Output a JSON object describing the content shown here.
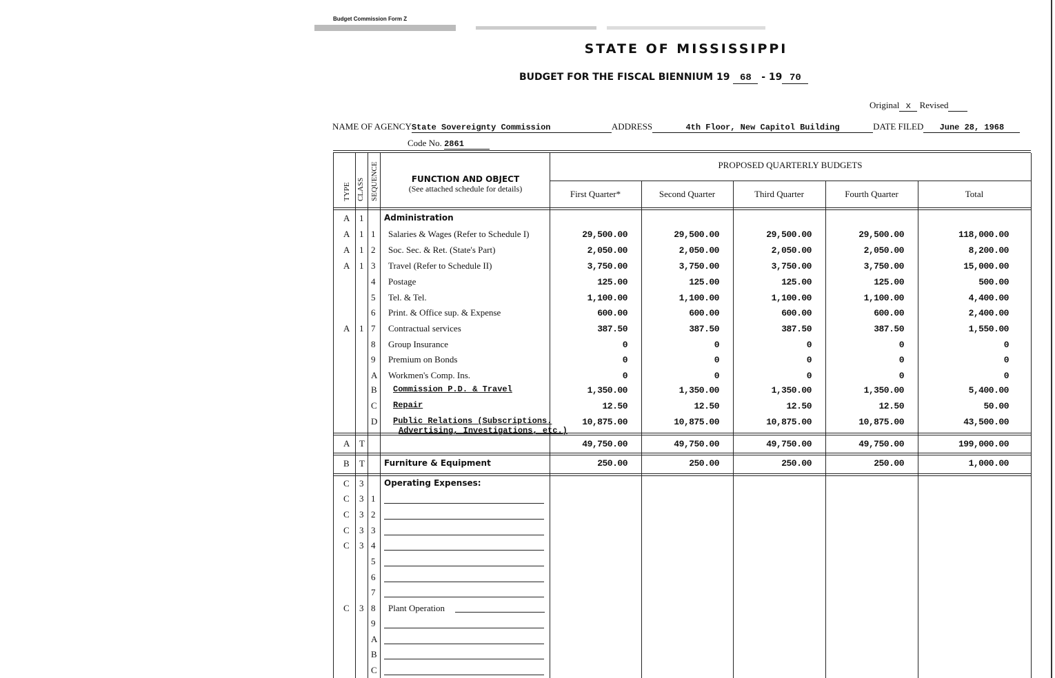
{
  "header": {
    "form": "Budget Commission Form Z",
    "title": "STATE OF MISSISSIPPI",
    "subtitle_prefix": "BUDGET FOR THE FISCAL BIENNIUM 19",
    "year_start": "68",
    "dash": "- 19",
    "year_end": "70",
    "original_label": "Original",
    "original_mark": "x",
    "revised_label": "Revised"
  },
  "agency": {
    "name_label": "NAME OF AGENCY",
    "name": "State Sovereignty Commission",
    "address_label": "ADDRESS",
    "address": "4th Floor, New Capitol Building",
    "date_label": "DATE FILED",
    "date": "June 28, 1968",
    "code_label": "Code No.",
    "code": "2861"
  },
  "table": {
    "col_type": "TYPE",
    "col_class": "CLASS",
    "col_seq": "SEQUENCE",
    "col_function": "FUNCTION AND OBJECT",
    "col_function_note": "(See attached schedule for details)",
    "proposed": "PROPOSED QUARTERLY BUDGETS",
    "quarters": [
      "First Quarter*",
      "Second Quarter",
      "Third Quarter",
      "Fourth Quarter",
      "Total"
    ],
    "rows": [
      {
        "type": "A",
        "class": "1",
        "seq": "",
        "label": "Administration",
        "bold": true,
        "values": []
      },
      {
        "type": "A",
        "class": "1",
        "seq": "1",
        "label": "Salaries & Wages (Refer to Schedule I)",
        "values": [
          "29,500.00",
          "29,500.00",
          "29,500.00",
          "29,500.00",
          "118,000.00"
        ]
      },
      {
        "type": "A",
        "class": "1",
        "seq": "2",
        "label": "Soc. Sec. & Ret. (State's Part)",
        "values": [
          "2,050.00",
          "2,050.00",
          "2,050.00",
          "2,050.00",
          "8,200.00"
        ]
      },
      {
        "type": "A",
        "class": "1",
        "seq": "3",
        "label": "Travel (Refer to Schedule II)",
        "values": [
          "3,750.00",
          "3,750.00",
          "3,750.00",
          "3,750.00",
          "15,000.00"
        ]
      },
      {
        "type": "",
        "class": "",
        "seq": "4",
        "label": "Postage",
        "values": [
          "125.00",
          "125.00",
          "125.00",
          "125.00",
          "500.00"
        ]
      },
      {
        "type": "",
        "class": "",
        "seq": "5",
        "label": "Tel. & Tel.",
        "values": [
          "1,100.00",
          "1,100.00",
          "1,100.00",
          "1,100.00",
          "4,400.00"
        ]
      },
      {
        "type": "",
        "class": "",
        "seq": "6",
        "label": "Print. & Office sup. & Expense",
        "values": [
          "600.00",
          "600.00",
          "600.00",
          "600.00",
          "2,400.00"
        ]
      },
      {
        "type": "A",
        "class": "1",
        "seq": "7",
        "label": "Contractual services",
        "values": [
          "387.50",
          "387.50",
          "387.50",
          "387.50",
          "1,550.00"
        ]
      },
      {
        "type": "",
        "class": "",
        "seq": "8",
        "label": "Group Insurance",
        "values": [
          "0",
          "0",
          "0",
          "0",
          "0"
        ]
      },
      {
        "type": "",
        "class": "",
        "seq": "9",
        "label": "Premium on Bonds",
        "values": [
          "0",
          "0",
          "0",
          "0",
          "0"
        ]
      },
      {
        "type": "",
        "class": "",
        "seq": "A",
        "label": "Workmen's Comp. Ins.",
        "values": [
          "0",
          "0",
          "0",
          "0",
          "0"
        ]
      },
      {
        "type": "",
        "class": "",
        "seq": "B",
        "label": "Commission P.D. & Travel",
        "typed": true,
        "values": [
          "1,350.00",
          "1,350.00",
          "1,350.00",
          "1,350.00",
          "5,400.00"
        ]
      },
      {
        "type": "",
        "class": "",
        "seq": "C",
        "label": "Repair",
        "typed": true,
        "values": [
          "12.50",
          "12.50",
          "12.50",
          "12.50",
          "50.00"
        ]
      },
      {
        "type": "",
        "class": "",
        "seq": "D",
        "label": "Public Relations (Subscriptions.",
        "label2": "Advertising, Investigations, etc.)",
        "typed": true,
        "values": [
          "10,875.00",
          "10,875.00",
          "10,875.00",
          "10,875.00",
          "43,500.00"
        ]
      },
      {
        "type": "A",
        "class": "T",
        "seq": "",
        "label": "",
        "values": [
          "49,750.00",
          "49,750.00",
          "49,750.00",
          "49,750.00",
          "199,000.00"
        ]
      },
      {
        "type": "B",
        "class": "T",
        "seq": "",
        "label": "Furniture & Equipment",
        "bold": true,
        "values": [
          "250.00",
          "250.00",
          "250.00",
          "250.00",
          "1,000.00"
        ]
      },
      {
        "type": "C",
        "class": "3",
        "seq": "",
        "label": "Operating Expenses:",
        "bold": true,
        "values": []
      },
      {
        "type": "C",
        "class": "3",
        "seq": "1",
        "label": "",
        "blank": true,
        "values": []
      },
      {
        "type": "C",
        "class": "3",
        "seq": "2",
        "label": "",
        "blank": true,
        "values": []
      },
      {
        "type": "C",
        "class": "3",
        "seq": "3",
        "label": "",
        "blank": true,
        "values": []
      },
      {
        "type": "C",
        "class": "3",
        "seq": "4",
        "label": "",
        "blank": true,
        "values": []
      },
      {
        "type": "",
        "class": "",
        "seq": "5",
        "label": "",
        "blank": true,
        "values": []
      },
      {
        "type": "",
        "class": "",
        "seq": "6",
        "label": "",
        "blank": true,
        "values": []
      },
      {
        "type": "",
        "class": "",
        "seq": "7",
        "label": "",
        "blank": true,
        "values": []
      },
      {
        "type": "C",
        "class": "3",
        "seq": "8",
        "label": "Plant Operation",
        "values": []
      },
      {
        "type": "",
        "class": "",
        "seq": "9",
        "label": "",
        "blank": true,
        "values": []
      },
      {
        "type": "",
        "class": "",
        "seq": "A",
        "label": "",
        "blank": true,
        "values": []
      },
      {
        "type": "",
        "class": "",
        "seq": "B",
        "label": "",
        "blank": true,
        "values": []
      },
      {
        "type": "",
        "class": "",
        "seq": "C",
        "label": "",
        "blank": true,
        "values": []
      }
    ]
  }
}
